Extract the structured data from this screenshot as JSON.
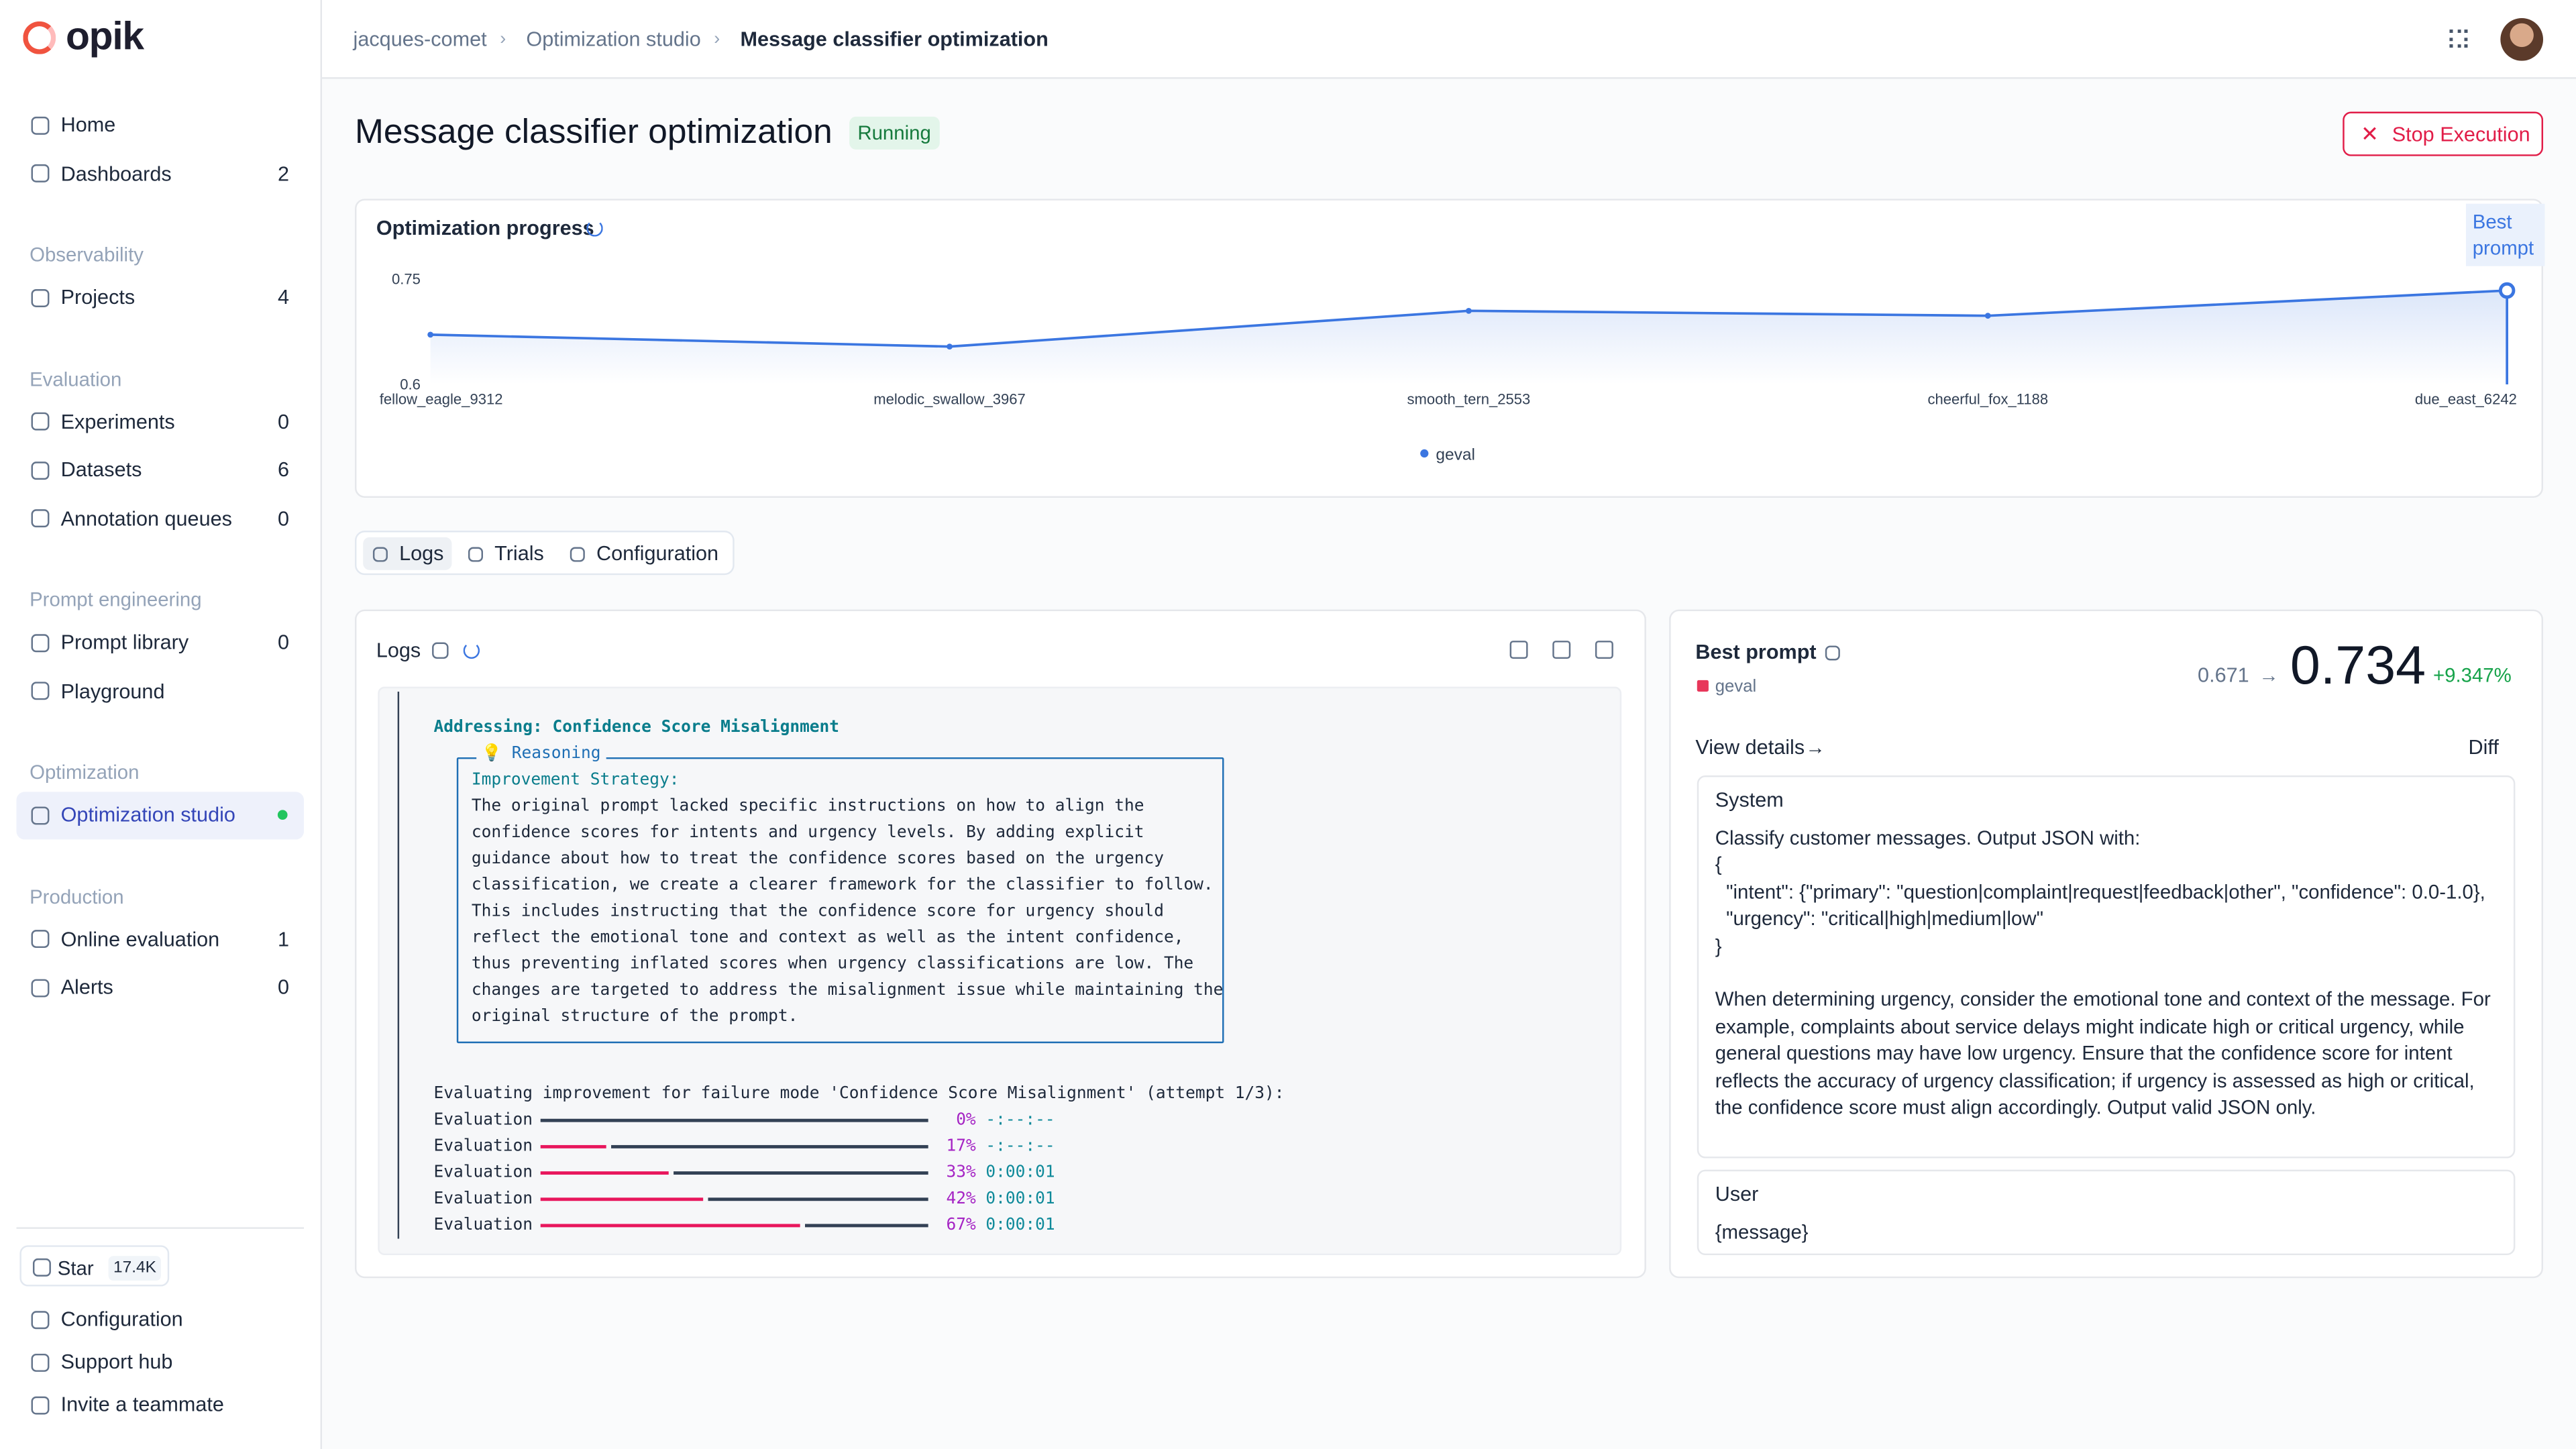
{
  "brand": "opik",
  "breadcrumbs": [
    "jacques-comet",
    "Optimization studio",
    "Message classifier optimization"
  ],
  "nav": [
    {
      "title": null,
      "items": [
        {
          "label": "Home"
        },
        {
          "label": "Dashboards",
          "count": 2
        }
      ]
    },
    {
      "title": "Observability",
      "items": [
        {
          "label": "Projects",
          "count": 4
        }
      ]
    },
    {
      "title": "Evaluation",
      "items": [
        {
          "label": "Experiments",
          "count": 0
        },
        {
          "label": "Datasets",
          "count": 6
        },
        {
          "label": "Annotation queues",
          "count": 0
        }
      ]
    },
    {
      "title": "Prompt engineering",
      "items": [
        {
          "label": "Prompt library",
          "count": 0
        },
        {
          "label": "Playground"
        }
      ]
    },
    {
      "title": "Optimization",
      "items": [
        {
          "label": "Optimization studio",
          "active": true
        }
      ]
    },
    {
      "title": "Production",
      "items": [
        {
          "label": "Online evaluation",
          "count": 1
        },
        {
          "label": "Alerts",
          "count": 0
        }
      ]
    }
  ],
  "footer": {
    "star": "Star",
    "stars": "17.4K",
    "links": [
      "Configuration",
      "Support hub",
      "Invite a teammate"
    ]
  },
  "header": {
    "title": "Message classifier optimization",
    "status": "Running",
    "action": "Stop Execution"
  },
  "chart_data": {
    "type": "line",
    "title": "Optimization progress",
    "categories": [
      "fellow_eagle_9312",
      "melodic_swallow_3967",
      "smooth_tern_2553",
      "cheerful_fox_1188",
      "due_east_6242"
    ],
    "series": [
      {
        "name": "geval",
        "color": "#3b76e1",
        "values": [
          0.671,
          0.654,
          0.705,
          0.698,
          0.734
        ]
      }
    ],
    "ylim": [
      0.6,
      0.75
    ],
    "yticks": [
      0.6,
      0.75
    ],
    "annotation": "Best prompt"
  },
  "tabs": [
    "Logs",
    "Trials",
    "Configuration"
  ],
  "logs": {
    "title": "Logs",
    "heading": "Addressing: Confidence Score Misalignment",
    "reasoning_title": "💡 Reasoning",
    "reasoning": [
      "Improvement Strategy:",
      "The original prompt lacked specific instructions on how to align the",
      "confidence scores for intents and urgency levels. By adding explicit",
      "guidance about how to treat the confidence scores based on the urgency",
      "classification, we create a clearer framework for the classifier to follow.",
      "This includes instructing that the confidence score for urgency should",
      "reflect the emotional tone and context as well as the intent confidence,",
      "thus preventing inflated scores when urgency classifications are low. The",
      "changes are targeted to address the misalignment issue while maintaining the",
      "original structure of the prompt."
    ],
    "status_line": "Evaluating improvement for failure mode 'Confidence Score Misalignment' (attempt 1/3):",
    "progress": [
      {
        "label": "Evaluation",
        "value": 0,
        "value_label": "0%",
        "time": "-:--:--"
      },
      {
        "label": "Evaluation",
        "value": 17,
        "value_label": "17%",
        "time": "-:--:--"
      },
      {
        "label": "Evaluation",
        "value": 33,
        "value_label": "33%",
        "time": "0:00:01"
      },
      {
        "label": "Evaluation",
        "value": 42,
        "value_label": "42%",
        "time": "0:00:01"
      },
      {
        "label": "Evaluation",
        "value": 67,
        "value_label": "67%",
        "time": "0:00:01"
      }
    ]
  },
  "best_prompt": {
    "title": "Best prompt",
    "metric": "geval",
    "baseline": 0.671,
    "score": 0.734,
    "change": "+9.347%",
    "view_details": "View details",
    "diff": "Diff",
    "messages": [
      {
        "role": "System",
        "content": "Classify customer messages. Output JSON with:\n{\n  \"intent\": {\"primary\": \"question|complaint|request|feedback|other\", \"confidence\": 0.0-1.0},\n  \"urgency\": \"critical|high|medium|low\"\n}\n\nWhen determining urgency, consider the emotional tone and context of the message. For example, complaints about service delays might indicate high or critical urgency, while general questions may have low urgency. Ensure that the confidence score for intent reflects the accuracy of urgency classification; if urgency is assessed as high or critical, the confidence score must align accordingly. Output valid JSON only."
      },
      {
        "role": "User",
        "content": "{message}"
      }
    ]
  }
}
